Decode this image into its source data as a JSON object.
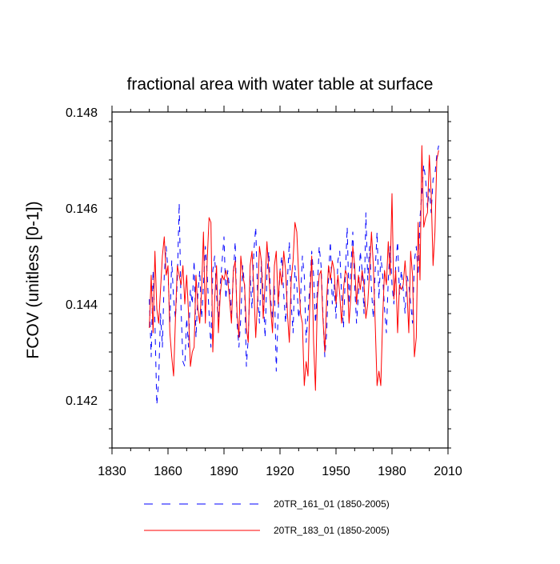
{
  "chart_data": {
    "type": "line",
    "title": "fractional area with water table at surface",
    "xlabel": "",
    "ylabel": "FCOV  (unitless [0-1])",
    "xlim": [
      1830,
      2010
    ],
    "ylim": [
      0.141,
      0.148
    ],
    "xticks": [
      1830,
      1860,
      1890,
      1920,
      1950,
      1980,
      2010
    ],
    "xtick_labels": [
      "1830",
      "1860",
      "1890",
      "1920",
      "1950",
      "1980",
      "2010"
    ],
    "yticks": [
      0.142,
      0.144,
      0.146,
      0.148
    ],
    "ytick_labels": [
      "0.142",
      "0.144",
      "0.146",
      "0.148"
    ],
    "grid": false,
    "legend_position": "bottom",
    "x": [
      1850,
      1851,
      1852,
      1853,
      1854,
      1855,
      1856,
      1857,
      1858,
      1859,
      1860,
      1861,
      1862,
      1863,
      1864,
      1865,
      1866,
      1867,
      1868,
      1869,
      1870,
      1871,
      1872,
      1873,
      1874,
      1875,
      1876,
      1877,
      1878,
      1879,
      1880,
      1881,
      1882,
      1883,
      1884,
      1885,
      1886,
      1887,
      1888,
      1889,
      1890,
      1891,
      1892,
      1893,
      1894,
      1895,
      1896,
      1897,
      1898,
      1899,
      1900,
      1901,
      1902,
      1903,
      1904,
      1905,
      1906,
      1907,
      1908,
      1909,
      1910,
      1911,
      1912,
      1913,
      1914,
      1915,
      1916,
      1917,
      1918,
      1919,
      1920,
      1921,
      1922,
      1923,
      1924,
      1925,
      1926,
      1927,
      1928,
      1929,
      1930,
      1931,
      1932,
      1933,
      1934,
      1935,
      1936,
      1937,
      1938,
      1939,
      1940,
      1941,
      1942,
      1943,
      1944,
      1945,
      1946,
      1947,
      1948,
      1949,
      1950,
      1951,
      1952,
      1953,
      1954,
      1955,
      1956,
      1957,
      1958,
      1959,
      1960,
      1961,
      1962,
      1963,
      1964,
      1965,
      1966,
      1967,
      1968,
      1969,
      1970,
      1971,
      1972,
      1973,
      1974,
      1975,
      1976,
      1977,
      1978,
      1979,
      1980,
      1981,
      1982,
      1983,
      1984,
      1985,
      1986,
      1987,
      1988,
      1989,
      1990,
      1991,
      1992,
      1993,
      1994,
      1995,
      1996,
      1997,
      1998,
      1999,
      2000,
      2001,
      2002,
      2003,
      2004,
      2005
    ],
    "series": [
      {
        "name": "20TR_161_01 (1850-2005)",
        "color": "#0000ff",
        "dash": "dashed",
        "values": [
          0.1441,
          0.1429,
          0.1447,
          0.1436,
          0.1419,
          0.1424,
          0.1438,
          0.1431,
          0.1446,
          0.1452,
          0.1447,
          0.1436,
          0.1449,
          0.1441,
          0.1437,
          0.1445,
          0.1461,
          0.1439,
          0.1428,
          0.1427,
          0.1437,
          0.1431,
          0.1443,
          0.144,
          0.1449,
          0.1433,
          0.1442,
          0.1447,
          0.1437,
          0.1444,
          0.1452,
          0.1446,
          0.1438,
          0.1431,
          0.1447,
          0.145,
          0.1442,
          0.1436,
          0.1444,
          0.1449,
          0.1454,
          0.1441,
          0.1447,
          0.1443,
          0.1438,
          0.1446,
          0.1453,
          0.1436,
          0.1431,
          0.1437,
          0.1448,
          0.1444,
          0.1427,
          0.1433,
          0.1446,
          0.1439,
          0.1451,
          0.1456,
          0.1442,
          0.1436,
          0.1449,
          0.1442,
          0.1433,
          0.1446,
          0.1451,
          0.1441,
          0.1437,
          0.1444,
          0.1426,
          0.1438,
          0.1447,
          0.145,
          0.1442,
          0.1436,
          0.1445,
          0.1453,
          0.144,
          0.1434,
          0.1448,
          0.1444,
          0.1437,
          0.1441,
          0.145,
          0.1446,
          0.1432,
          0.1438,
          0.1444,
          0.1451,
          0.1446,
          0.1436,
          0.1443,
          0.1452,
          0.1448,
          0.1438,
          0.1429,
          0.1434,
          0.1446,
          0.1453,
          0.144,
          0.1444,
          0.1437,
          0.1449,
          0.1451,
          0.1442,
          0.1435,
          0.1446,
          0.1456,
          0.144,
          0.1448,
          0.1455,
          0.1444,
          0.1436,
          0.1442,
          0.1451,
          0.1447,
          0.1438,
          0.1459,
          0.1445,
          0.1452,
          0.1443,
          0.1437,
          0.1447,
          0.1455,
          0.1441,
          0.145,
          0.1446,
          0.1439,
          0.1434,
          0.1445,
          0.1452,
          0.1444,
          0.144,
          0.1448,
          0.1453,
          0.1442,
          0.1447,
          0.1443,
          0.1438,
          0.1446,
          0.1444,
          0.144,
          0.1436,
          0.1449,
          0.1452,
          0.1446,
          0.1458,
          0.1463,
          0.1469,
          0.1466,
          0.146,
          0.1464,
          0.1459,
          0.1466,
          0.1467,
          0.1471,
          0.1473
        ]
      },
      {
        "name": "20TR_183_01 (1850-2005)",
        "color": "#ff0000",
        "dash": "solid",
        "values": [
          0.1435,
          0.1446,
          0.1434,
          0.1451,
          0.1439,
          0.1436,
          0.1443,
          0.145,
          0.1454,
          0.1446,
          0.1448,
          0.1434,
          0.1429,
          0.1425,
          0.1437,
          0.1448,
          0.1446,
          0.1444,
          0.1448,
          0.144,
          0.1446,
          0.1438,
          0.1427,
          0.143,
          0.1431,
          0.1446,
          0.1439,
          0.1436,
          0.1443,
          0.1455,
          0.1436,
          0.1449,
          0.1458,
          0.1457,
          0.143,
          0.1441,
          0.1448,
          0.1434,
          0.1442,
          0.1446,
          0.1445,
          0.1447,
          0.1445,
          0.1441,
          0.1436,
          0.1447,
          0.1449,
          0.1438,
          0.1433,
          0.145,
          0.1446,
          0.1444,
          0.1435,
          0.1432,
          0.1448,
          0.1451,
          0.1443,
          0.1433,
          0.1441,
          0.1452,
          0.1449,
          0.1437,
          0.1444,
          0.1453,
          0.1447,
          0.1439,
          0.1434,
          0.1448,
          0.1451,
          0.144,
          0.1447,
          0.1444,
          0.1451,
          0.1447,
          0.1438,
          0.1432,
          0.1445,
          0.1449,
          0.1457,
          0.1455,
          0.1446,
          0.1438,
          0.1436,
          0.1423,
          0.1428,
          0.1425,
          0.1441,
          0.145,
          0.1432,
          0.1422,
          0.1441,
          0.1446,
          0.1447,
          0.1437,
          0.143,
          0.1441,
          0.1448,
          0.1445,
          0.1449,
          0.1447,
          0.144,
          0.1446,
          0.1442,
          0.1436,
          0.1443,
          0.1447,
          0.1446,
          0.1436,
          0.1442,
          0.1452,
          0.1448,
          0.144,
          0.1446,
          0.1443,
          0.1447,
          0.1444,
          0.1437,
          0.144,
          0.1447,
          0.1455,
          0.1448,
          0.1436,
          0.1423,
          0.1426,
          0.1423,
          0.1437,
          0.1447,
          0.1444,
          0.1453,
          0.1446,
          0.1463,
          0.1441,
          0.1447,
          0.1434,
          0.1444,
          0.1443,
          0.1444,
          0.1449,
          0.1443,
          0.1434,
          0.1451,
          0.1446,
          0.1429,
          0.1433,
          0.1457,
          0.1445,
          0.1473,
          0.1456,
          0.1458,
          0.1459,
          0.1471,
          0.1463,
          0.1448,
          0.1455,
          0.147,
          0.1472
        ]
      }
    ]
  }
}
